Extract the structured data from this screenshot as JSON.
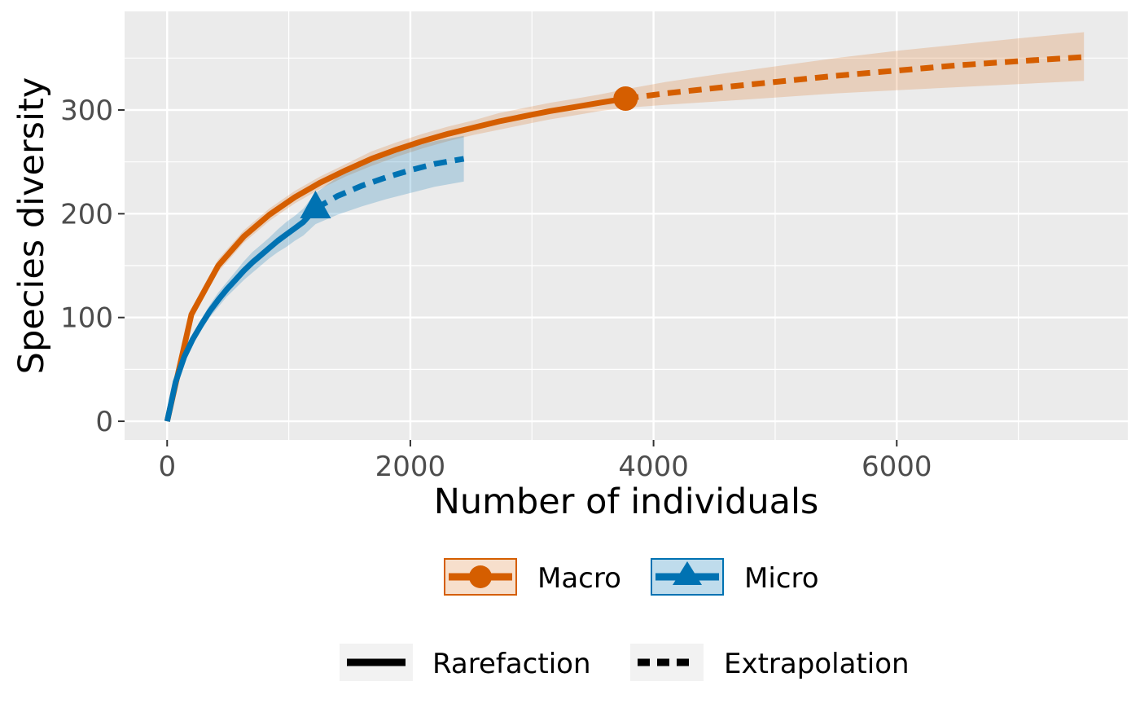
{
  "chart_data": {
    "type": "line",
    "title": "",
    "xlabel": "Number of individuals",
    "ylabel": "Species diversity",
    "xlim": [
      -350,
      7900
    ],
    "ylim": [
      -18,
      395
    ],
    "x_ticks": [
      0,
      2000,
      4000,
      6000
    ],
    "y_ticks": [
      0,
      100,
      200,
      300
    ],
    "grid": true,
    "legend_position": "bottom",
    "legend_groups": [
      [
        {
          "label": "Macro",
          "key": "macro"
        },
        {
          "label": "Micro",
          "key": "micro"
        }
      ],
      [
        {
          "label": "Rarefaction",
          "key": "rarefaction"
        },
        {
          "label": "Extrapolation",
          "key": "extrapolation"
        }
      ]
    ],
    "series": [
      {
        "name": "Macro",
        "color": "#D55E00",
        "marker": "circle",
        "observed": {
          "x": 3770,
          "y": 311
        },
        "rarefaction": {
          "x": [
            0,
            200,
            420,
            630,
            840,
            1050,
            1260,
            1470,
            1680,
            1890,
            2100,
            2310,
            2520,
            2730,
            2940,
            3150,
            3360,
            3560,
            3770
          ],
          "y": [
            0,
            103,
            150,
            178,
            199,
            216,
            230,
            242,
            253,
            262,
            270,
            277,
            283,
            289,
            294,
            299,
            303,
            307,
            311
          ],
          "lower": [
            0,
            98,
            144,
            172,
            193,
            210,
            224,
            236,
            246,
            255,
            263,
            270,
            276,
            281,
            286,
            291,
            295,
            299,
            302
          ],
          "upper": [
            0,
            108,
            156,
            184,
            205,
            222,
            236,
            248,
            260,
            269,
            277,
            284,
            290,
            297,
            302,
            307,
            311,
            315,
            320
          ]
        },
        "extrapolation": {
          "x": [
            3770,
            4100,
            4500,
            5000,
            5500,
            6000,
            6500,
            7000,
            7540
          ],
          "y": [
            311,
            316,
            321,
            327,
            333,
            338,
            343,
            347,
            351
          ],
          "lower": [
            302,
            305,
            308,
            312,
            316,
            319,
            322,
            325,
            328
          ],
          "upper": [
            320,
            327,
            334,
            342,
            350,
            357,
            363,
            369,
            375
          ]
        }
      },
      {
        "name": "Micro",
        "color": "#0072B2",
        "marker": "triangle",
        "observed": {
          "x": 1220,
          "y": 205
        },
        "rarefaction": {
          "x": [
            0,
            70,
            140,
            210,
            280,
            350,
            420,
            490,
            560,
            630,
            700,
            770,
            840,
            910,
            980,
            1050,
            1120,
            1220
          ],
          "y": [
            0,
            38,
            62,
            79,
            93,
            106,
            117,
            127,
            136,
            145,
            153,
            160,
            167,
            174,
            180,
            186,
            192,
            205
          ],
          "lower": [
            0,
            36,
            59,
            75,
            88,
            100,
            110,
            120,
            128,
            136,
            143,
            150,
            157,
            163,
            168,
            174,
            179,
            190
          ],
          "upper": [
            0,
            40,
            65,
            83,
            98,
            112,
            124,
            134,
            144,
            154,
            163,
            170,
            177,
            185,
            192,
            198,
            205,
            220
          ]
        },
        "extrapolation": {
          "x": [
            1220,
            1400,
            1600,
            1800,
            2000,
            2200,
            2440
          ],
          "y": [
            205,
            217,
            227,
            235,
            242,
            248,
            253
          ],
          "lower": [
            190,
            199,
            207,
            214,
            220,
            226,
            231
          ],
          "upper": [
            220,
            235,
            247,
            256,
            264,
            270,
            275
          ]
        }
      }
    ]
  }
}
